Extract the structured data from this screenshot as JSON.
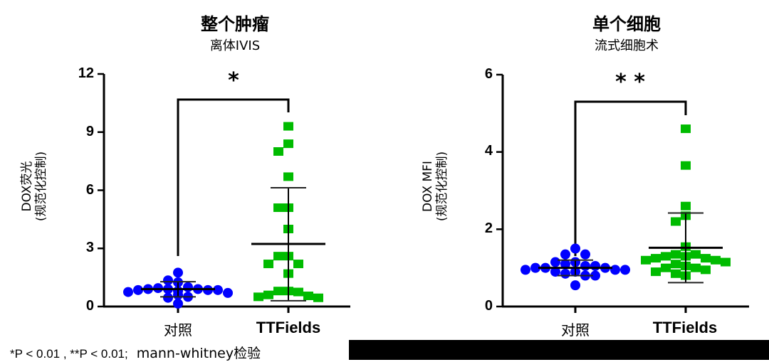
{
  "chart_data": [
    {
      "type": "scatter",
      "title": "整个肿瘤",
      "subtitle": "离体IVIS",
      "xlabel": "",
      "ylabel": "DOX荧光\n(规范化控制)",
      "ylabel_line1": "DOX荧光",
      "ylabel_line2": "(规范化控制)",
      "ylim": [
        0,
        12
      ],
      "yticks": [
        0,
        3,
        6,
        9,
        12
      ],
      "categories": [
        "对照",
        "TTFields"
      ],
      "significance": "*",
      "series": [
        {
          "name": "对照",
          "color": "#0000ff",
          "marker": "circle",
          "values": [
            1.75,
            1.35,
            1.25,
            1.0,
            0.95,
            0.9,
            0.9,
            0.9,
            0.85,
            0.85,
            0.85,
            0.8,
            0.75,
            0.7,
            0.6,
            0.5,
            0.45,
            0.15
          ],
          "mean": 0.9,
          "sd_upper": 1.28,
          "sd_lower": 0.5
        },
        {
          "name": "TTFields",
          "color": "#00bb00",
          "marker": "square",
          "values": [
            9.3,
            8.4,
            8.0,
            6.7,
            5.1,
            5.1,
            4.0,
            2.6,
            2.6,
            2.2,
            2.2,
            1.7,
            0.8,
            0.8,
            0.75,
            0.6,
            0.55,
            0.5,
            0.45
          ],
          "mean": 3.23,
          "sd_upper": 6.13,
          "sd_lower": 0.3
        }
      ]
    },
    {
      "type": "scatter",
      "title": "单个细胞",
      "subtitle": "流式细胞术",
      "xlabel": "",
      "ylabel": "DOX MFI\n(规范化控制)",
      "ylabel_line1": "DOX MFI",
      "ylabel_line2": "(规范化控制)",
      "ylim": [
        0,
        6
      ],
      "yticks": [
        0,
        2,
        4,
        6
      ],
      "categories": [
        "对照",
        "TTFields"
      ],
      "significance": "**",
      "series": [
        {
          "name": "对照",
          "color": "#0000ff",
          "marker": "circle",
          "values": [
            1.5,
            1.35,
            1.35,
            1.15,
            1.15,
            1.1,
            1.05,
            1.05,
            1.0,
            1.0,
            1.0,
            0.95,
            0.95,
            0.95,
            0.9,
            0.9,
            0.85,
            0.8,
            0.8,
            0.55
          ],
          "mean": 1.0,
          "sd_upper": 1.2,
          "sd_lower": 0.8
        },
        {
          "name": "TTFields",
          "color": "#00bb00",
          "marker": "square",
          "values": [
            4.6,
            3.65,
            2.6,
            2.35,
            2.2,
            1.55,
            1.35,
            1.35,
            1.3,
            1.3,
            1.25,
            1.25,
            1.2,
            1.2,
            1.15,
            1.1,
            1.05,
            1.0,
            1.0,
            0.95,
            0.9,
            0.85,
            0.8
          ],
          "mean": 1.52,
          "sd_upper": 2.42,
          "sd_lower": 0.62
        }
      ]
    }
  ],
  "panels": {
    "left": {
      "title": "整个肿瘤",
      "subtitle": "离体IVIS",
      "ylabel_line1": "DOX荧光",
      "ylabel_line2": "(规范化控制)",
      "yticks": [
        "12",
        "9",
        "6",
        "3",
        "0"
      ],
      "cat1": "对照",
      "cat2": "TTFields",
      "sig": "*"
    },
    "right": {
      "title": "单个细胞",
      "subtitle": "流式细胞术",
      "ylabel_line1": "DOX MFI",
      "ylabel_line2": "(规范化控制)",
      "yticks": [
        "6",
        "4",
        "2",
        "0"
      ],
      "cat1": "对照",
      "cat2": "TTFields",
      "sig": "* *"
    }
  },
  "footnote": {
    "stats": "*P < 0.01 , **P < 0.01;",
    "test": "mann-whitney检验"
  }
}
